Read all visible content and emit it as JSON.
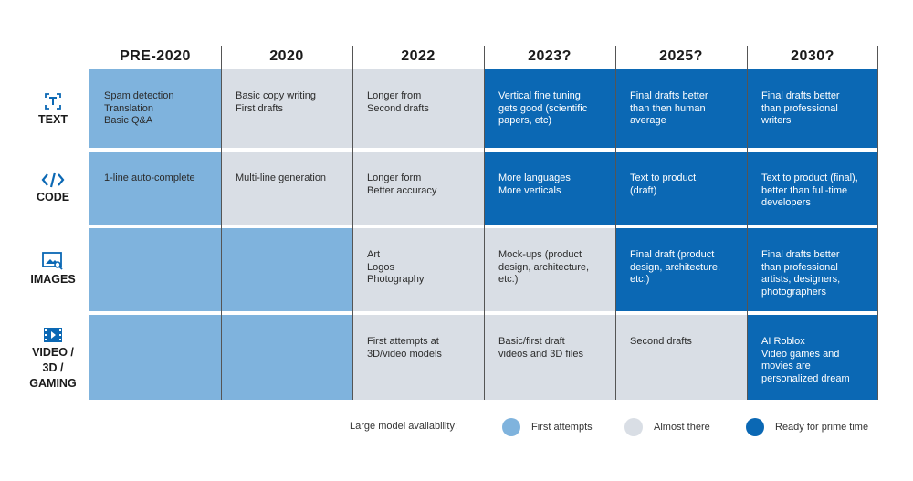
{
  "columns": [
    "PRE-2020",
    "2020",
    "2022",
    "2023?",
    "2025?",
    "2030?"
  ],
  "rows": [
    {
      "label": "TEXT",
      "icon": "text-icon",
      "cells": [
        {
          "text": "Spam detection\nTranslation\nBasic Q&A",
          "level": "first_attempts"
        },
        {
          "text": "Basic copy writing\nFirst drafts",
          "level": "almost_there"
        },
        {
          "text": "Longer from\nSecond drafts",
          "level": "almost_there"
        },
        {
          "text": "Vertical fine tuning\ngets good (scientific\npapers, etc)",
          "level": "prime_time"
        },
        {
          "text": "Final drafts better\nthan then human\naverage",
          "level": "prime_time"
        },
        {
          "text": "Final drafts better\nthan professional\nwriters",
          "level": "prime_time"
        }
      ]
    },
    {
      "label": "CODE",
      "icon": "code-icon",
      "cells": [
        {
          "text": "1-line auto-complete",
          "level": "first_attempts"
        },
        {
          "text": "Multi-line generation",
          "level": "almost_there"
        },
        {
          "text": "Longer form\nBetter accuracy",
          "level": "almost_there"
        },
        {
          "text": "More languages\nMore verticals",
          "level": "prime_time"
        },
        {
          "text": "Text to product\n(draft)",
          "level": "prime_time"
        },
        {
          "text": "Text to product (final),\nbetter than full-time\ndevelopers",
          "level": "prime_time"
        }
      ]
    },
    {
      "label": "IMAGES",
      "icon": "image-icon",
      "cells": [
        {
          "text": "",
          "level": "first_attempts"
        },
        {
          "text": "",
          "level": "first_attempts"
        },
        {
          "text": "Art\nLogos\nPhotography",
          "level": "almost_there"
        },
        {
          "text": "Mock-ups (product\ndesign, architecture,\netc.)",
          "level": "almost_there"
        },
        {
          "text": "Final draft (product\ndesign, architecture,\netc.)",
          "level": "prime_time"
        },
        {
          "text": "Final drafts better\nthan professional\nartists, designers,\nphotographers",
          "level": "prime_time"
        }
      ]
    },
    {
      "label": "VIDEO /\n3D /\nGAMING",
      "icon": "video-icon",
      "cells": [
        {
          "text": "",
          "level": "first_attempts"
        },
        {
          "text": "",
          "level": "first_attempts"
        },
        {
          "text": "First attempts at\n3D/video models",
          "level": "almost_there"
        },
        {
          "text": "Basic/first draft\nvideos and 3D files",
          "level": "almost_there"
        },
        {
          "text": "Second drafts",
          "level": "almost_there"
        },
        {
          "text": "AI Roblox\nVideo games and\nmovies are\npersonalized dream",
          "level": "prime_time"
        }
      ]
    }
  ],
  "legend": {
    "title": "Large model availability:",
    "items": [
      {
        "key": "first_attempts",
        "label": "First attempts",
        "color": "#7fb3dd"
      },
      {
        "key": "almost_there",
        "label": "Almost there",
        "color": "#d9dee5"
      },
      {
        "key": "prime_time",
        "label": "Ready for prime time",
        "color": "#0b68b4"
      }
    ]
  }
}
